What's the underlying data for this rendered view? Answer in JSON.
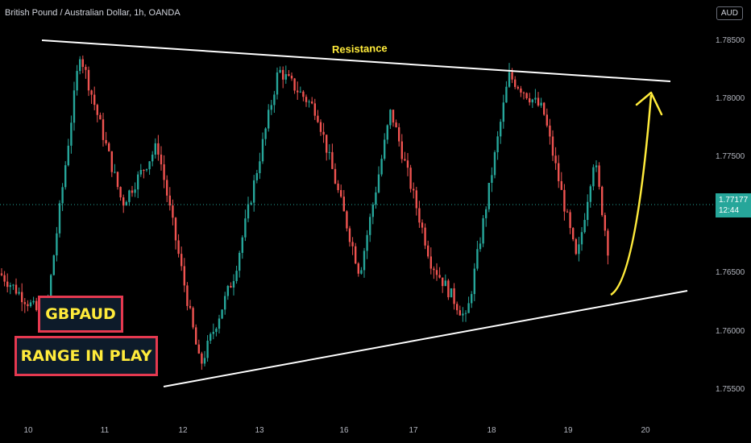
{
  "header": {
    "title": "British Pound / Australian Dollar, 1h, OANDA",
    "currency_badge": "AUD"
  },
  "current_price": {
    "value": "1.77177",
    "countdown": "12:44"
  },
  "annotations": {
    "resistance_label": "Resistance",
    "box_symbol": "GBPAUD",
    "box_caption": "RANGE IN PLAY"
  },
  "colors": {
    "up": "#26a69a",
    "down": "#ef5350",
    "trendline": "#ffffff",
    "arrow": "#ffeb3b",
    "box_border": "#e53950"
  },
  "chart_data": {
    "type": "candlestick",
    "y_axis": {
      "ticks": [
        "1.78500",
        "1.78000",
        "1.77500",
        "1.77000",
        "1.76500",
        "1.76000",
        "1.75500"
      ],
      "ylim": [
        1.7525,
        1.7885
      ]
    },
    "x_axis": {
      "ticks": [
        "10",
        "11",
        "12",
        "13",
        "16",
        "17",
        "18",
        "19",
        "20"
      ]
    },
    "key_points": [
      {
        "x": "10",
        "y": 1.761
      },
      {
        "x": "10",
        "y": 1.784
      },
      {
        "x": "11",
        "y": 1.771
      },
      {
        "x": "11",
        "y": 1.776
      },
      {
        "x": "12",
        "y": 1.757
      },
      {
        "x": "12",
        "y": 1.765
      },
      {
        "x": "13",
        "y": 1.7825
      },
      {
        "x": "13",
        "y": 1.779
      },
      {
        "x": "16",
        "y": 1.765
      },
      {
        "x": "16",
        "y": 1.779
      },
      {
        "x": "17",
        "y": 1.766
      },
      {
        "x": "17",
        "y": 1.761
      },
      {
        "x": "18",
        "y": 1.782
      },
      {
        "x": "18",
        "y": 1.779
      },
      {
        "x": "19",
        "y": 1.766
      },
      {
        "x": "19",
        "y": 1.775
      },
      {
        "x": "19",
        "y": 1.765
      },
      {
        "x": "19",
        "y": 1.7718
      }
    ],
    "trendlines": [
      {
        "name": "resistance",
        "start": {
          "x": "10",
          "y": 1.785
        },
        "end": {
          "x": "20",
          "y": 1.7817
        }
      },
      {
        "name": "support",
        "start": {
          "x": "12",
          "y": 1.7568
        },
        "end": {
          "x": "20",
          "y": 1.7645
        }
      }
    ],
    "current_price": 1.77177
  }
}
